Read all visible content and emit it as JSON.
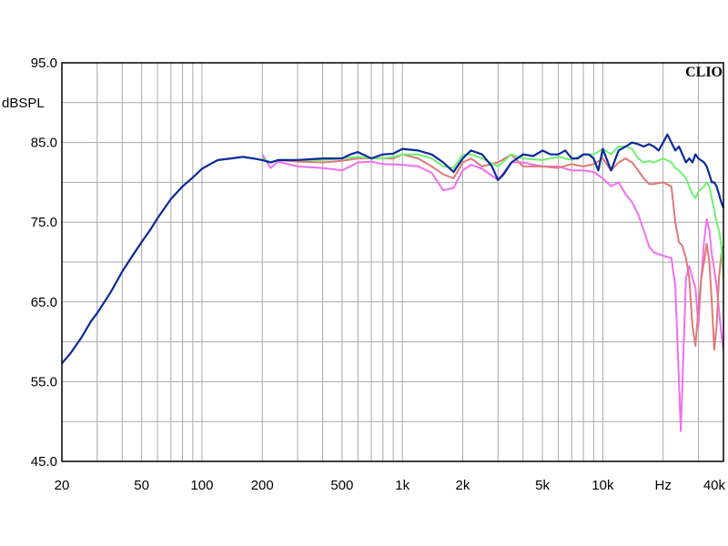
{
  "chart_data": {
    "type": "line",
    "ylabel": "dBSPL",
    "brand": "CLIO",
    "x_scale": "log",
    "xlim": [
      20,
      40000
    ],
    "ylim": [
      45,
      95
    ],
    "grid": true,
    "y_ticks": [
      {
        "value": 95,
        "label": "95.0"
      },
      {
        "value": 85,
        "label": "85.0"
      },
      {
        "value": 75,
        "label": "75.0"
      },
      {
        "value": 65,
        "label": "65.0"
      },
      {
        "value": 55,
        "label": "55.0"
      },
      {
        "value": 45,
        "label": "45.0"
      }
    ],
    "x_ticks": [
      {
        "value": 20,
        "label": "20"
      },
      {
        "value": 50,
        "label": "50"
      },
      {
        "value": 100,
        "label": "100"
      },
      {
        "value": 200,
        "label": "200"
      },
      {
        "value": 500,
        "label": "500"
      },
      {
        "value": 1000,
        "label": "1k"
      },
      {
        "value": 2000,
        "label": "2k"
      },
      {
        "value": 5000,
        "label": "5k"
      },
      {
        "value": 10000,
        "label": "10k"
      },
      {
        "value": 20000,
        "label": "Hz"
      },
      {
        "value": 40000,
        "label": "40k"
      }
    ],
    "series": [
      {
        "color": "#f070f0",
        "points": [
          [
            200,
            83.5
          ],
          [
            220,
            81.8
          ],
          [
            240,
            82.6
          ],
          [
            300,
            82.0
          ],
          [
            400,
            81.8
          ],
          [
            500,
            81.5
          ],
          [
            600,
            82.5
          ],
          [
            700,
            82.6
          ],
          [
            800,
            82.3
          ],
          [
            1000,
            82.2
          ],
          [
            1200,
            82.0
          ],
          [
            1400,
            81.2
          ],
          [
            1600,
            79.0
          ],
          [
            1800,
            79.3
          ],
          [
            2000,
            81.5
          ],
          [
            2200,
            82.2
          ],
          [
            2500,
            81.7
          ],
          [
            3000,
            80.3
          ],
          [
            3500,
            82.5
          ],
          [
            4000,
            82.5
          ],
          [
            5000,
            82.0
          ],
          [
            6000,
            82.0
          ],
          [
            7000,
            81.5
          ],
          [
            8000,
            81.5
          ],
          [
            9000,
            81.3
          ],
          [
            10000,
            80.5
          ],
          [
            11000,
            79.5
          ],
          [
            12000,
            80.0
          ],
          [
            13000,
            78.5
          ],
          [
            14000,
            77.5
          ],
          [
            15000,
            76.0
          ],
          [
            16000,
            74.0
          ],
          [
            17000,
            72.0
          ],
          [
            18000,
            71.2
          ],
          [
            20000,
            70.8
          ],
          [
            22000,
            70.5
          ],
          [
            23000,
            67.0
          ],
          [
            24000,
            55.0
          ],
          [
            24500,
            48.8
          ],
          [
            25000,
            55.0
          ],
          [
            26000,
            68.0
          ],
          [
            27000,
            69.5
          ],
          [
            28000,
            68.0
          ],
          [
            29000,
            66.8
          ],
          [
            30000,
            62.0
          ],
          [
            31000,
            68.0
          ],
          [
            32000,
            72.5
          ],
          [
            33000,
            75.4
          ],
          [
            34000,
            74.0
          ],
          [
            35000,
            71.0
          ],
          [
            36000,
            69.0
          ],
          [
            37000,
            67.0
          ],
          [
            38000,
            64.0
          ],
          [
            39000,
            61.0
          ],
          [
            40000,
            59.0
          ]
        ]
      },
      {
        "color": "#e07878",
        "points": [
          [
            200,
            83.0
          ],
          [
            220,
            82.5
          ],
          [
            240,
            82.8
          ],
          [
            300,
            82.6
          ],
          [
            400,
            82.5
          ],
          [
            500,
            82.7
          ],
          [
            600,
            83.0
          ],
          [
            700,
            83.0
          ],
          [
            800,
            83.0
          ],
          [
            900,
            83.0
          ],
          [
            1000,
            83.5
          ],
          [
            1200,
            83.0
          ],
          [
            1400,
            82.0
          ],
          [
            1600,
            81.0
          ],
          [
            1800,
            80.5
          ],
          [
            2000,
            82.5
          ],
          [
            2200,
            83.0
          ],
          [
            2500,
            82.0
          ],
          [
            3000,
            82.5
          ],
          [
            3500,
            83.5
          ],
          [
            4000,
            82.0
          ],
          [
            5000,
            82.0
          ],
          [
            6000,
            81.8
          ],
          [
            7000,
            82.3
          ],
          [
            8000,
            82.0
          ],
          [
            9000,
            82.3
          ],
          [
            10000,
            83.0
          ],
          [
            11000,
            81.5
          ],
          [
            12000,
            82.5
          ],
          [
            13000,
            83.0
          ],
          [
            14000,
            82.5
          ],
          [
            15000,
            81.5
          ],
          [
            16000,
            80.5
          ],
          [
            17000,
            79.8
          ],
          [
            18000,
            79.8
          ],
          [
            20000,
            80.0
          ],
          [
            22000,
            79.5
          ],
          [
            23000,
            75.0
          ],
          [
            24000,
            72.5
          ],
          [
            25000,
            72.0
          ],
          [
            26000,
            70.5
          ],
          [
            27000,
            68.0
          ],
          [
            28000,
            62.0
          ],
          [
            29000,
            59.5
          ],
          [
            30000,
            64.0
          ],
          [
            31000,
            68.0
          ],
          [
            32000,
            70.0
          ],
          [
            33000,
            72.3
          ],
          [
            34000,
            70.0
          ],
          [
            35000,
            65.0
          ],
          [
            36000,
            59.0
          ],
          [
            37000,
            62.0
          ],
          [
            38000,
            68.0
          ],
          [
            39000,
            71.0
          ],
          [
            40000,
            72.0
          ]
        ]
      },
      {
        "color": "#70f070",
        "points": [
          [
            200,
            83.0
          ],
          [
            220,
            82.5
          ],
          [
            240,
            82.8
          ],
          [
            300,
            82.8
          ],
          [
            400,
            82.8
          ],
          [
            500,
            83.0
          ],
          [
            600,
            83.2
          ],
          [
            700,
            83.0
          ],
          [
            800,
            83.0
          ],
          [
            900,
            83.2
          ],
          [
            1000,
            83.5
          ],
          [
            1200,
            83.5
          ],
          [
            1400,
            83.0
          ],
          [
            1600,
            82.0
          ],
          [
            1800,
            81.8
          ],
          [
            2000,
            83.5
          ],
          [
            2200,
            83.5
          ],
          [
            2500,
            83.0
          ],
          [
            3000,
            82.0
          ],
          [
            3500,
            83.5
          ],
          [
            4000,
            83.0
          ],
          [
            5000,
            82.8
          ],
          [
            6000,
            83.2
          ],
          [
            7000,
            82.8
          ],
          [
            8000,
            83.5
          ],
          [
            9000,
            83.5
          ],
          [
            10000,
            84.2
          ],
          [
            11000,
            83.5
          ],
          [
            12000,
            84.5
          ],
          [
            13000,
            84.5
          ],
          [
            14000,
            84.2
          ],
          [
            15000,
            83.0
          ],
          [
            16000,
            82.5
          ],
          [
            17000,
            82.7
          ],
          [
            18000,
            82.5
          ],
          [
            20000,
            83.0
          ],
          [
            22000,
            82.5
          ],
          [
            23000,
            81.8
          ],
          [
            24000,
            81.5
          ],
          [
            25000,
            81.0
          ],
          [
            26000,
            80.5
          ],
          [
            27000,
            79.5
          ],
          [
            28000,
            78.5
          ],
          [
            29000,
            78.0
          ],
          [
            30000,
            78.8
          ],
          [
            32000,
            79.5
          ],
          [
            33000,
            80.0
          ],
          [
            34000,
            79.5
          ],
          [
            35000,
            78.0
          ],
          [
            36000,
            76.5
          ],
          [
            37000,
            75.0
          ],
          [
            38000,
            74.0
          ],
          [
            39000,
            72.0
          ],
          [
            40000,
            68.0
          ]
        ]
      },
      {
        "color": "#0a2a9a",
        "points": [
          [
            20,
            57.3
          ],
          [
            22,
            58.5
          ],
          [
            25,
            60.5
          ],
          [
            28,
            62.6
          ],
          [
            30,
            63.6
          ],
          [
            35,
            66.2
          ],
          [
            40,
            68.8
          ],
          [
            45,
            70.8
          ],
          [
            50,
            72.5
          ],
          [
            55,
            74.0
          ],
          [
            60,
            75.5
          ],
          [
            70,
            77.9
          ],
          [
            80,
            79.5
          ],
          [
            90,
            80.6
          ],
          [
            100,
            81.7
          ],
          [
            110,
            82.3
          ],
          [
            120,
            82.8
          ],
          [
            140,
            83.0
          ],
          [
            160,
            83.2
          ],
          [
            180,
            83.0
          ],
          [
            200,
            82.8
          ],
          [
            220,
            82.5
          ],
          [
            240,
            82.8
          ],
          [
            300,
            82.8
          ],
          [
            400,
            83.0
          ],
          [
            500,
            83.0
          ],
          [
            550,
            83.5
          ],
          [
            600,
            83.8
          ],
          [
            700,
            83.0
          ],
          [
            800,
            83.5
          ],
          [
            900,
            83.6
          ],
          [
            1000,
            84.2
          ],
          [
            1200,
            84.0
          ],
          [
            1400,
            83.5
          ],
          [
            1600,
            82.5
          ],
          [
            1800,
            81.3
          ],
          [
            2000,
            83.0
          ],
          [
            2200,
            84.0
          ],
          [
            2500,
            83.5
          ],
          [
            2800,
            82.0
          ],
          [
            3000,
            80.3
          ],
          [
            3200,
            81.0
          ],
          [
            3500,
            82.5
          ],
          [
            4000,
            83.5
          ],
          [
            4500,
            83.3
          ],
          [
            5000,
            84.0
          ],
          [
            5500,
            83.5
          ],
          [
            6000,
            83.5
          ],
          [
            6500,
            84.0
          ],
          [
            7000,
            83.0
          ],
          [
            7500,
            83.0
          ],
          [
            8000,
            83.5
          ],
          [
            8500,
            83.5
          ],
          [
            9000,
            83.0
          ],
          [
            9500,
            81.5
          ],
          [
            10000,
            84.2
          ],
          [
            11000,
            81.5
          ],
          [
            12000,
            84.0
          ],
          [
            13000,
            84.5
          ],
          [
            14000,
            85.0
          ],
          [
            15000,
            84.8
          ],
          [
            16000,
            84.5
          ],
          [
            17000,
            84.8
          ],
          [
            18000,
            84.5
          ],
          [
            19000,
            84.0
          ],
          [
            20000,
            85.0
          ],
          [
            21000,
            86.0
          ],
          [
            22000,
            85.0
          ],
          [
            23000,
            84.0
          ],
          [
            24000,
            84.5
          ],
          [
            25000,
            83.5
          ],
          [
            26000,
            82.5
          ],
          [
            27000,
            83.0
          ],
          [
            28000,
            82.5
          ],
          [
            29000,
            83.5
          ],
          [
            30000,
            83.0
          ],
          [
            32000,
            82.5
          ],
          [
            33000,
            82.0
          ],
          [
            34000,
            81.0
          ],
          [
            35000,
            80.0
          ],
          [
            36000,
            80.0
          ],
          [
            37000,
            79.5
          ],
          [
            38000,
            78.5
          ],
          [
            39000,
            77.5
          ],
          [
            40000,
            76.8
          ]
        ]
      }
    ]
  }
}
